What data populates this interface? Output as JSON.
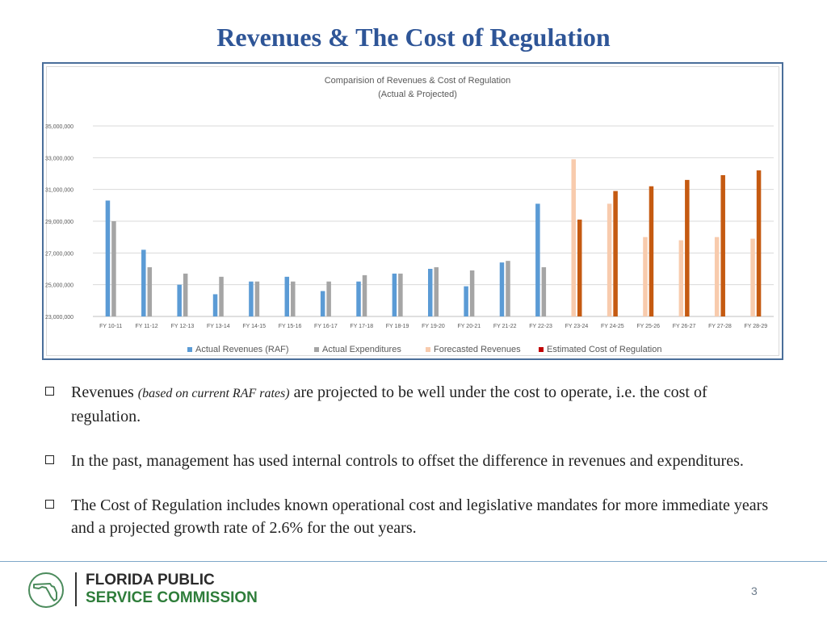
{
  "slide": {
    "title": "Revenues & The Cost of Regulation",
    "page_number": "3"
  },
  "footer": {
    "org_line1": "FLORIDA PUBLIC",
    "org_line2": "SERVICE COMMISSION"
  },
  "bullets": [
    {
      "prefix": "Revenues ",
      "italic": "(based on current RAF rates)",
      "suffix": " are projected to be well under the cost to operate, i.e. the cost of regulation."
    },
    {
      "prefix": "In the past, management has used internal controls to offset the difference in revenues and expenditures.",
      "italic": "",
      "suffix": ""
    },
    {
      "prefix": "The Cost of Regulation includes known operational cost and legislative mandates for more immediate years and a projected growth rate of 2.6% for the out years.",
      "italic": "",
      "suffix": ""
    }
  ],
  "colors": {
    "title": "#2E5597",
    "actual_revenues": "#5B9BD5",
    "actual_expenditures": "#A5A5A5",
    "forecasted_revenues": "#F8CBAD",
    "estimated_cost": "#C55A11",
    "legend_estimated_cost": "#C00000"
  },
  "chart_data": {
    "type": "bar",
    "title": "Comparision of Revenues & Cost of Regulation",
    "subtitle": "(Actual & Projected)",
    "xlabel": "",
    "ylabel": "",
    "ylim": [
      23000000,
      35000000
    ],
    "yticks": [
      23000000,
      25000000,
      27000000,
      29000000,
      31000000,
      33000000,
      35000000
    ],
    "ytick_labels": [
      "23,000,000",
      "25,000,000",
      "27,000,000",
      "29,000,000",
      "31,000,000",
      "33,000,000",
      "35,000,000"
    ],
    "grid": true,
    "legend_position": "bottom",
    "categories": [
      "FY 10-11",
      "FY 11-12",
      "FY 12-13",
      "FY 13-14",
      "FY 14-15",
      "FY 15-16",
      "FY 16-17",
      "FY 17-18",
      "FY  18-19",
      "FY 19-20",
      "FY 20-21",
      "FY 21-22",
      "FY 22-23",
      "FY 23-24",
      "FY 24-25",
      "FY 25-26",
      "FY 26-27",
      "FY 27-28",
      "FY 28-29"
    ],
    "series": [
      {
        "name": "Actual Revenues (RAF)",
        "color": "#5B9BD5",
        "values": [
          30300000,
          27200000,
          25000000,
          24400000,
          25200000,
          25500000,
          24600000,
          25200000,
          25700000,
          26000000,
          24900000,
          26400000,
          30100000,
          null,
          null,
          null,
          null,
          null,
          null
        ]
      },
      {
        "name": "Actual Expenditures",
        "color": "#A5A5A5",
        "values": [
          29000000,
          26100000,
          25700000,
          25500000,
          25200000,
          25200000,
          25200000,
          25600000,
          25700000,
          26100000,
          25900000,
          26500000,
          26100000,
          null,
          null,
          null,
          null,
          null,
          null
        ]
      },
      {
        "name": "Forecasted Revenues",
        "color": "#F8CBAD",
        "values": [
          null,
          null,
          null,
          null,
          null,
          null,
          null,
          null,
          null,
          null,
          null,
          null,
          null,
          32900000,
          30100000,
          28000000,
          27800000,
          28000000,
          27900000
        ]
      },
      {
        "name": "Estimated Cost of Regulation",
        "color": "#C55A11",
        "values": [
          null,
          null,
          null,
          null,
          null,
          null,
          null,
          null,
          null,
          null,
          null,
          null,
          null,
          29100000,
          30900000,
          31200000,
          31600000,
          31900000,
          32200000
        ]
      }
    ]
  }
}
